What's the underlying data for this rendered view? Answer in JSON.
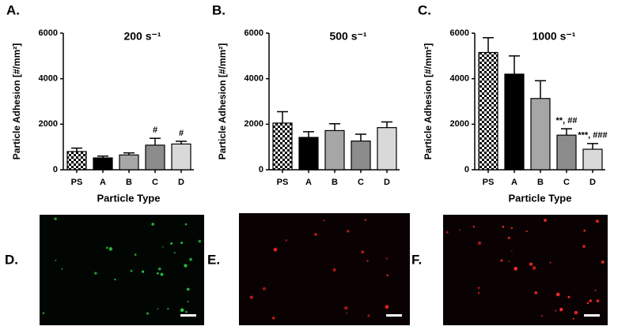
{
  "chart_data": [
    {
      "type": "bar",
      "panel": "A.",
      "title": "200 s⁻¹",
      "y_label": "Particle Adhesion [#/mm²]",
      "x_label": "Particle Type",
      "categories": [
        "PS",
        "A",
        "B",
        "C",
        "D"
      ],
      "values": [
        800,
        520,
        650,
        1080,
        1130
      ],
      "errors": [
        150,
        80,
        90,
        300,
        120
      ],
      "colors": [
        "checkered",
        "#000000",
        "#a6a6a6",
        "#8c8c8c",
        "#d9d9d9"
      ],
      "ylim": [
        0,
        6000
      ],
      "yticks": [
        0,
        2000,
        4000,
        6000
      ],
      "annotations": [
        {
          "category": "C",
          "text": "#"
        },
        {
          "category": "D",
          "text": "#"
        }
      ]
    },
    {
      "type": "bar",
      "panel": "B.",
      "title": "500 s⁻¹",
      "y_label": "Particle Adhesion [#/mm²]",
      "categories": [
        "PS",
        "A",
        "B",
        "C",
        "D"
      ],
      "values": [
        2050,
        1420,
        1720,
        1260,
        1850
      ],
      "errors": [
        500,
        250,
        300,
        300,
        250
      ],
      "colors": [
        "checkered",
        "#000000",
        "#a6a6a6",
        "#8c8c8c",
        "#d9d9d9"
      ],
      "ylim": [
        0,
        6000
      ],
      "yticks": [
        0,
        2000,
        4000,
        6000
      ],
      "annotations": []
    },
    {
      "type": "bar",
      "panel": "C.",
      "title": "1000 s⁻¹",
      "y_label": "Particle Adhesion [#/mm²]",
      "x_label": "Particle Type",
      "categories": [
        "PS",
        "A",
        "B",
        "C",
        "D"
      ],
      "values": [
        5150,
        4200,
        3130,
        1520,
        900
      ],
      "errors": [
        650,
        800,
        780,
        280,
        250
      ],
      "colors": [
        "checkered",
        "#000000",
        "#a6a6a6",
        "#8c8c8c",
        "#d9d9d9"
      ],
      "ylim": [
        0,
        6000
      ],
      "yticks": [
        0,
        2000,
        4000,
        6000
      ],
      "annotations": [
        {
          "category": "C",
          "text": "**, ##"
        },
        {
          "category": "D",
          "text": "***, ###"
        }
      ]
    }
  ],
  "images": [
    {
      "label": "D.",
      "color": "#2fd44a"
    },
    {
      "label": "E.",
      "color": "#e02020"
    },
    {
      "label": "F.",
      "color": "#ff2a2a"
    }
  ]
}
